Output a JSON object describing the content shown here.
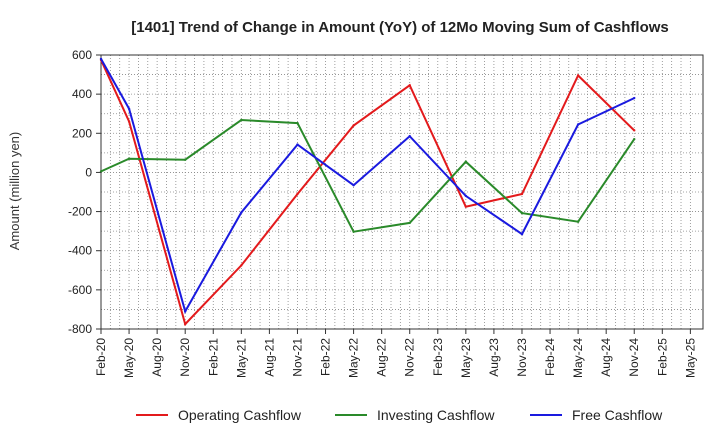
{
  "chart_data": {
    "type": "line",
    "title": "[1401]  Trend of Change in Amount (YoY) of 12Mo Moving Sum of Cashflows",
    "xlabel": "",
    "ylabel": "Amount (million yen)",
    "ylim": [
      -800,
      600
    ],
    "yticks": [
      600,
      400,
      200,
      0,
      -200,
      -400,
      -600,
      -800
    ],
    "ytick_labels": [
      "600",
      "400",
      "200",
      "0",
      "-200",
      "-400",
      "-600",
      "-800"
    ],
    "grid": true,
    "legend_position": "bottom",
    "categories": [
      "Feb-20",
      "May-20",
      "Aug-20",
      "Nov-20",
      "Feb-21",
      "May-21",
      "Aug-21",
      "Nov-21",
      "Feb-22",
      "May-22",
      "Aug-22",
      "Nov-22",
      "Feb-23",
      "May-23",
      "Aug-23",
      "Nov-23",
      "Feb-24",
      "May-24",
      "Aug-24",
      "Nov-24",
      "Feb-25",
      "May-25"
    ],
    "series": [
      {
        "name": "Operating Cashflow",
        "color": "#e31a1c",
        "points": [
          [
            "Feb-20",
            575
          ],
          [
            "May-20",
            260
          ],
          [
            "Nov-20",
            -775
          ],
          [
            "May-21",
            -475
          ],
          [
            "Nov-21",
            -110
          ],
          [
            "May-22",
            240
          ],
          [
            "Nov-22",
            445
          ],
          [
            "May-23",
            -175
          ],
          [
            "Nov-23",
            -110
          ],
          [
            "May-24",
            495
          ],
          [
            "Nov-24",
            215
          ]
        ]
      },
      {
        "name": "Investing Cashflow",
        "color": "#2a8a2a",
        "points": [
          [
            "Feb-20",
            5
          ],
          [
            "May-20",
            70
          ],
          [
            "Nov-20",
            65
          ],
          [
            "May-21",
            268
          ],
          [
            "Nov-21",
            252
          ],
          [
            "May-22",
            -303
          ],
          [
            "Nov-22",
            -258
          ],
          [
            "May-23",
            55
          ],
          [
            "Nov-23",
            -208
          ],
          [
            "May-24",
            -252
          ],
          [
            "Nov-24",
            170
          ]
        ]
      },
      {
        "name": "Free Cashflow",
        "color": "#1a1adf",
        "points": [
          [
            "Feb-20",
            580
          ],
          [
            "May-20",
            325
          ],
          [
            "Nov-20",
            -710
          ],
          [
            "May-21",
            -205
          ],
          [
            "Nov-21",
            142
          ],
          [
            "May-22",
            -65
          ],
          [
            "Nov-22",
            185
          ],
          [
            "May-23",
            -120
          ],
          [
            "Nov-23",
            -315
          ],
          [
            "May-24",
            245
          ],
          [
            "Nov-24",
            380
          ]
        ]
      }
    ]
  }
}
